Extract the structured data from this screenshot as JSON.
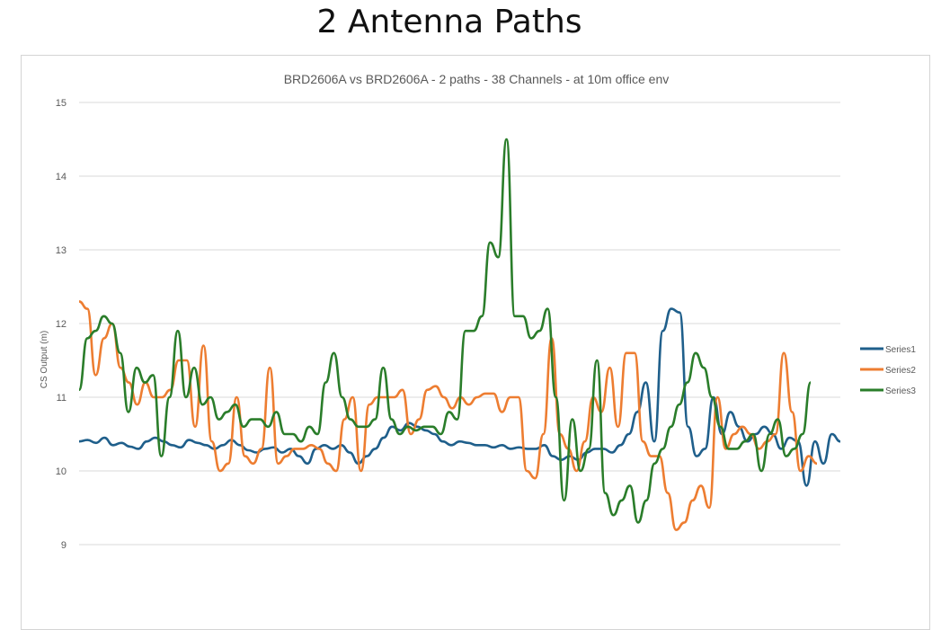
{
  "page": {
    "heading": "2 Antenna Paths"
  },
  "chart_data": {
    "type": "line",
    "title": "BRD2606A vs BRD2606A - 2 paths - 38 Channels - at 10m office env",
    "xlabel": "",
    "ylabel": "CS Output (m)",
    "ylim": [
      9,
      15
    ],
    "yticks": [
      "9",
      "10",
      "11",
      "12",
      "13",
      "14",
      "15"
    ],
    "grid": true,
    "legend_position": "right",
    "series": [
      {
        "name": "Series1",
        "color": "#1f5f8b",
        "values": [
          10.4,
          10.42,
          10.38,
          10.45,
          10.35,
          10.38,
          10.33,
          10.3,
          10.4,
          10.45,
          10.4,
          10.35,
          10.32,
          10.42,
          10.38,
          10.35,
          10.3,
          10.35,
          10.42,
          10.35,
          10.28,
          10.25,
          10.3,
          10.32,
          10.25,
          10.3,
          10.2,
          10.1,
          10.3,
          10.35,
          10.3,
          10.35,
          10.25,
          10.1,
          10.2,
          10.3,
          10.45,
          10.6,
          10.55,
          10.65,
          10.6,
          10.55,
          10.5,
          10.4,
          10.35,
          10.4,
          10.38,
          10.35,
          10.35,
          10.32,
          10.35,
          10.3,
          10.32,
          10.3,
          10.3,
          10.35,
          10.2,
          10.15,
          10.2,
          10.15,
          10.25,
          10.3,
          10.3,
          10.25,
          10.35,
          10.5,
          10.8,
          11.2,
          10.4,
          11.9,
          12.2,
          12.15,
          10.6,
          10.2,
          10.3,
          11.0,
          10.5,
          10.8,
          10.6,
          10.4,
          10.5,
          10.6,
          10.5,
          10.3,
          10.45,
          10.4,
          9.8,
          10.4,
          10.1,
          10.5,
          10.4
        ]
      },
      {
        "name": "Series2",
        "color": "#ed7d31",
        "values": [
          12.3,
          12.2,
          11.3,
          11.8,
          12.0,
          11.4,
          11.2,
          10.9,
          11.2,
          11.0,
          11.0,
          11.1,
          11.5,
          11.5,
          10.6,
          11.7,
          10.4,
          10.0,
          10.1,
          11.0,
          10.2,
          10.1,
          10.3,
          11.4,
          10.1,
          10.2,
          10.3,
          10.3,
          10.35,
          10.3,
          10.1,
          10.0,
          10.7,
          11.0,
          10.0,
          10.9,
          11.0,
          11.0,
          11.0,
          11.1,
          10.5,
          10.7,
          11.1,
          11.15,
          11.0,
          10.85,
          11.0,
          10.9,
          11.0,
          11.05,
          11.05,
          10.8,
          11.0,
          11.0,
          10.0,
          9.9,
          10.5,
          11.8,
          10.5,
          10.3,
          10.0,
          10.4,
          11.0,
          10.8,
          11.4,
          10.6,
          11.6,
          11.6,
          10.4,
          10.2,
          10.2,
          9.7,
          9.2,
          9.3,
          9.6,
          9.8,
          9.5,
          11.0,
          10.3,
          10.5,
          10.6,
          10.5,
          10.3,
          10.4,
          10.5,
          11.6,
          10.8,
          10.0,
          10.2,
          10.1
        ]
      },
      {
        "name": "Series3",
        "color": "#2a7d2a",
        "values": [
          11.1,
          11.8,
          11.9,
          12.1,
          12.0,
          11.6,
          10.8,
          11.4,
          11.2,
          11.3,
          10.2,
          11.0,
          11.9,
          11.0,
          11.4,
          10.9,
          11.0,
          10.7,
          10.8,
          10.9,
          10.6,
          10.7,
          10.7,
          10.6,
          10.8,
          10.5,
          10.5,
          10.4,
          10.6,
          10.5,
          11.2,
          11.6,
          11.0,
          10.7,
          10.6,
          10.6,
          10.7,
          11.4,
          10.7,
          10.5,
          10.6,
          10.55,
          10.6,
          10.6,
          10.5,
          10.8,
          10.7,
          11.9,
          11.9,
          12.1,
          13.1,
          12.9,
          14.5,
          12.1,
          12.1,
          11.8,
          11.9,
          12.2,
          11.0,
          9.6,
          10.7,
          10.0,
          10.3,
          11.5,
          9.7,
          9.4,
          9.6,
          9.8,
          9.3,
          9.6,
          10.1,
          10.3,
          10.6,
          10.9,
          11.2,
          11.6,
          11.4,
          11.0,
          10.6,
          10.3,
          10.3,
          10.4,
          10.5,
          10.0,
          10.5,
          10.7,
          10.2,
          10.3,
          10.5,
          11.2
        ]
      }
    ]
  }
}
